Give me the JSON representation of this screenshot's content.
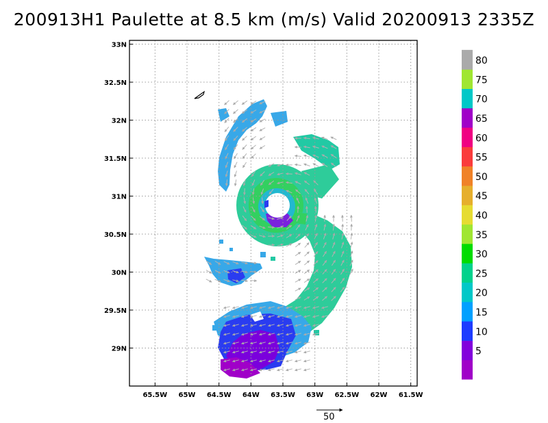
{
  "title": "200913H1 Paulette at 8.5 km (m/s) Valid 20200913 2335Z",
  "map": {
    "lon_range": [
      -65.9,
      -61.4
    ],
    "lat_range": [
      28.5,
      33.05
    ],
    "x_ticks": [
      {
        "value": -65.5,
        "label": "65.5W"
      },
      {
        "value": -65.0,
        "label": "65W"
      },
      {
        "value": -64.5,
        "label": "64.5W"
      },
      {
        "value": -64.0,
        "label": "64W"
      },
      {
        "value": -63.5,
        "label": "63.5W"
      },
      {
        "value": -63.0,
        "label": "63W"
      },
      {
        "value": -62.5,
        "label": "62.5W"
      },
      {
        "value": -62.0,
        "label": "62W"
      },
      {
        "value": -61.5,
        "label": "61.5W"
      }
    ],
    "y_ticks": [
      {
        "value": 33.0,
        "label": "33N"
      },
      {
        "value": 32.5,
        "label": "32.5N"
      },
      {
        "value": 32.0,
        "label": "32N"
      },
      {
        "value": 31.5,
        "label": "31.5N"
      },
      {
        "value": 31.0,
        "label": "31N"
      },
      {
        "value": 30.5,
        "label": "30.5N"
      },
      {
        "value": 30.0,
        "label": "30N"
      },
      {
        "value": 29.5,
        "label": "29.5N"
      },
      {
        "value": 29.0,
        "label": "29N"
      }
    ],
    "grid": true,
    "storm_center": {
      "lon": -63.55,
      "lat": 30.9
    },
    "wind_field_color_levels": [
      5,
      10,
      15,
      20,
      25,
      30,
      35
    ]
  },
  "colorbar": {
    "levels": [
      {
        "label": "",
        "color": "#a000c8"
      },
      {
        "label": "5",
        "color": "#8200dc"
      },
      {
        "label": "10",
        "color": "#1e3cff"
      },
      {
        "label": "15",
        "color": "#00a0ff"
      },
      {
        "label": "20",
        "color": "#00c8c8"
      },
      {
        "label": "25",
        "color": "#00d28c"
      },
      {
        "label": "30",
        "color": "#00dc00"
      },
      {
        "label": "35",
        "color": "#a0e632"
      },
      {
        "label": "40",
        "color": "#e6dc32"
      },
      {
        "label": "45",
        "color": "#e6af2d"
      },
      {
        "label": "50",
        "color": "#f08228"
      },
      {
        "label": "55",
        "color": "#fa3c3c"
      },
      {
        "label": "60",
        "color": "#f00082"
      },
      {
        "label": "65",
        "color": "#a000c8"
      },
      {
        "label": "70",
        "color": "#00c8c8"
      },
      {
        "label": "75",
        "color": "#a0e632"
      },
      {
        "label": "80",
        "color": "#aaaaaa"
      }
    ]
  },
  "vector_reference": {
    "label": "50"
  }
}
